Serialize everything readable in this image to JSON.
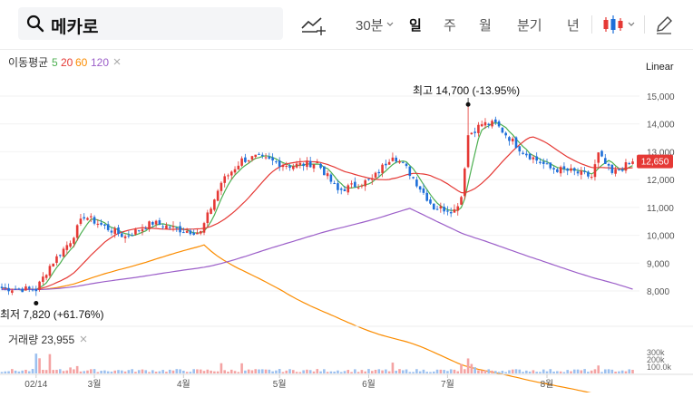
{
  "search": {
    "value": "메카로",
    "icon": "search-icon"
  },
  "toolbar": {
    "interval": "30분",
    "periods": [
      "일",
      "주",
      "월",
      "분기",
      "년"
    ],
    "active_period": "일"
  },
  "indicators": {
    "label": "이동평균",
    "ma": [
      {
        "period": "5",
        "color": "#4caf50"
      },
      {
        "period": "20",
        "color": "#e53935"
      },
      {
        "period": "60",
        "color": "#fb8c00"
      },
      {
        "period": "120",
        "color": "#9c5fc9"
      }
    ]
  },
  "scale_label": "Linear",
  "price_axis": [
    "15,000",
    "14,000",
    "13,000",
    "12,000",
    "11,000",
    "10,000",
    "9,000",
    "8,000"
  ],
  "current_price": "12,650",
  "high_label": "최고 14,700 (-13.95%)",
  "low_label": "최저 7,820 (+61.76%)",
  "volume": {
    "label": "거래량 23,955",
    "axis": [
      "300k",
      "200k",
      "100.0k"
    ]
  },
  "x_axis": [
    "02/14",
    "3월",
    "4월",
    "5월",
    "6월",
    "7월",
    "8월"
  ],
  "chart_data": {
    "type": "candlestick",
    "stock": "메카로",
    "scale": "linear",
    "ylim": [
      7600,
      15300
    ],
    "y_ticks": [
      8000,
      9000,
      10000,
      11000,
      12000,
      13000,
      14000,
      15000
    ],
    "x_ticks": [
      "02/14",
      "3월",
      "4월",
      "5월",
      "6월",
      "7월",
      "8월"
    ],
    "close_anchors": [
      [
        0,
        8100
      ],
      [
        10,
        8050
      ],
      [
        14,
        8900
      ],
      [
        20,
        9800
      ],
      [
        24,
        10700
      ],
      [
        30,
        10300
      ],
      [
        36,
        9950
      ],
      [
        44,
        10450
      ],
      [
        52,
        10200
      ],
      [
        58,
        10100
      ],
      [
        64,
        11900
      ],
      [
        70,
        12700
      ],
      [
        74,
        12800
      ],
      [
        84,
        12500
      ],
      [
        92,
        12600
      ],
      [
        98,
        11600
      ],
      [
        108,
        12000
      ],
      [
        114,
        12900
      ],
      [
        118,
        12400
      ],
      [
        126,
        11000
      ],
      [
        132,
        10900
      ],
      [
        134,
        11400
      ],
      [
        136,
        13600
      ],
      [
        140,
        14000
      ],
      [
        144,
        14000
      ],
      [
        152,
        13000
      ],
      [
        160,
        12400
      ],
      [
        166,
        12300
      ],
      [
        172,
        12100
      ],
      [
        174,
        12900
      ],
      [
        178,
        12200
      ],
      [
        184,
        12650
      ]
    ],
    "high": 14700,
    "low": 7820,
    "last_close": 12650,
    "moving_averages": [
      5,
      20,
      60,
      120
    ],
    "volume_last": 23955
  }
}
